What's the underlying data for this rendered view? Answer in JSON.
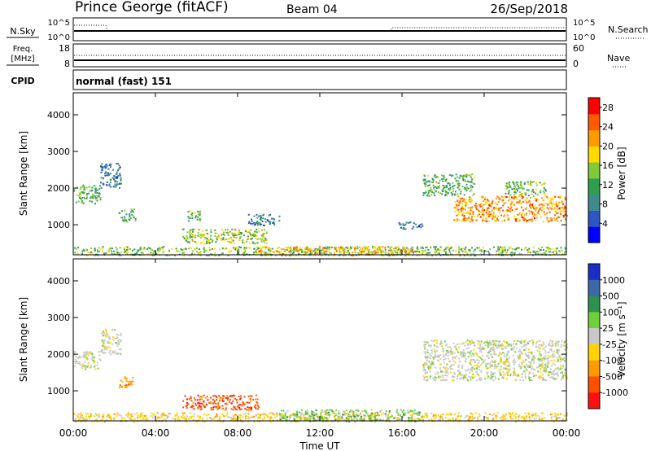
{
  "header": {
    "station": "Prince George (fitACF)",
    "beam": "Beam 04",
    "date": "26/Sep/2018"
  },
  "summary": {
    "nsky_label": "N.Sky",
    "nsky_ticks": [
      "10^5",
      "10^0"
    ],
    "nsearch_label": "N.Search",
    "nsearch_ticks": [
      "10^5",
      "10^0"
    ],
    "freq_label_line1": "Freq.",
    "freq_label_line2": "[MHz]",
    "freq_ticks": [
      "18",
      "8"
    ],
    "nave_label": "Nave",
    "nave_ticks": [
      "60",
      "0"
    ],
    "cpid_label": "CPID",
    "cpid_value": "normal (fast) 151"
  },
  "chart_data": [
    {
      "type": "heatmap",
      "title": "",
      "ylabel": "Slant Range [km]",
      "xlabel": "",
      "x_ticks": [
        "00:00",
        "04:00",
        "08:00",
        "12:00",
        "16:00",
        "20:00",
        "00:00"
      ],
      "y_ticks": [
        1000,
        2000,
        3000,
        4000
      ],
      "xlim_hours": [
        0,
        24
      ],
      "ylim_km": [
        180,
        4600
      ],
      "colorbar": {
        "label": "Power [dB]",
        "range": [
          0,
          30
        ],
        "ticks": [
          "4",
          "8",
          "12",
          "16",
          "20",
          "24",
          "28"
        ],
        "colors": [
          "#0000ff",
          "#2d56c4",
          "#3f8a8c",
          "#2f9f4f",
          "#7fc93a",
          "#ffd900",
          "#ff9a00",
          "#ff5a00",
          "#ff0000"
        ]
      },
      "regions": [
        {
          "t0": 0.0,
          "t1": 1.3,
          "r0": 1600,
          "r1": 2100,
          "level": 12
        },
        {
          "t0": 1.3,
          "t1": 2.3,
          "r0": 2000,
          "r1": 2700,
          "level": 8
        },
        {
          "t0": 2.2,
          "t1": 3.0,
          "r0": 1100,
          "r1": 1450,
          "level": 12
        },
        {
          "t0": 5.5,
          "t1": 6.2,
          "r0": 1100,
          "r1": 1400,
          "level": 12
        },
        {
          "t0": 5.3,
          "t1": 9.5,
          "r0": 500,
          "r1": 900,
          "level": 16
        },
        {
          "t0": 8.5,
          "t1": 10.0,
          "r0": 1000,
          "r1": 1300,
          "level": 8
        },
        {
          "t0": 0.0,
          "t1": 24.0,
          "r0": 180,
          "r1": 420,
          "level": 14
        },
        {
          "t0": 9.0,
          "t1": 16.5,
          "r0": 180,
          "r1": 420,
          "level": 20
        },
        {
          "t0": 15.8,
          "t1": 17.0,
          "r0": 900,
          "r1": 1100,
          "level": 8
        },
        {
          "t0": 17.0,
          "t1": 19.5,
          "r0": 1800,
          "r1": 2400,
          "level": 12
        },
        {
          "t0": 18.5,
          "t1": 24.0,
          "r0": 1100,
          "r1": 1800,
          "level": 22
        },
        {
          "t0": 21.0,
          "t1": 23.0,
          "r0": 1800,
          "r1": 2200,
          "level": 14
        }
      ]
    },
    {
      "type": "heatmap",
      "title": "",
      "ylabel": "Slant Range [km]",
      "xlabel": "Time UT",
      "x_ticks": [
        "00:00",
        "04:00",
        "08:00",
        "12:00",
        "16:00",
        "20:00",
        "00:00"
      ],
      "y_ticks": [
        1000,
        2000,
        3000,
        4000
      ],
      "xlim_hours": [
        0,
        24
      ],
      "ylim_km": [
        180,
        4600
      ],
      "colorbar": {
        "label": "Velocity [m s⁻¹]",
        "ticks": [
          "1000",
          "500",
          "100",
          "25",
          "-25",
          "-100",
          "-500",
          "-1000"
        ],
        "colors": [
          "#1a2fc8",
          "#3d68a8",
          "#2f8f4f",
          "#6fcf3a",
          "#c8c8c8",
          "#ffd400",
          "#ff9a00",
          "#ff5000",
          "#ff1010"
        ]
      },
      "regions": [
        {
          "t0": 0.0,
          "t1": 1.3,
          "r0": 1600,
          "r1": 2100,
          "level": "25"
        },
        {
          "t0": 1.3,
          "t1": 2.3,
          "r0": 2000,
          "r1": 2700,
          "level": "25"
        },
        {
          "t0": 2.2,
          "t1": 3.0,
          "r0": 1100,
          "r1": 1400,
          "level": "-100"
        },
        {
          "t0": 5.3,
          "t1": 9.0,
          "r0": 500,
          "r1": 900,
          "level": "-500"
        },
        {
          "t0": 0.0,
          "t1": 24.0,
          "r0": 180,
          "r1": 420,
          "level": "-25"
        },
        {
          "t0": 10.0,
          "t1": 17.0,
          "r0": 180,
          "r1": 500,
          "level": "100"
        },
        {
          "t0": 17.0,
          "t1": 24.0,
          "r0": 1300,
          "r1": 2400,
          "level": "25"
        }
      ]
    }
  ]
}
